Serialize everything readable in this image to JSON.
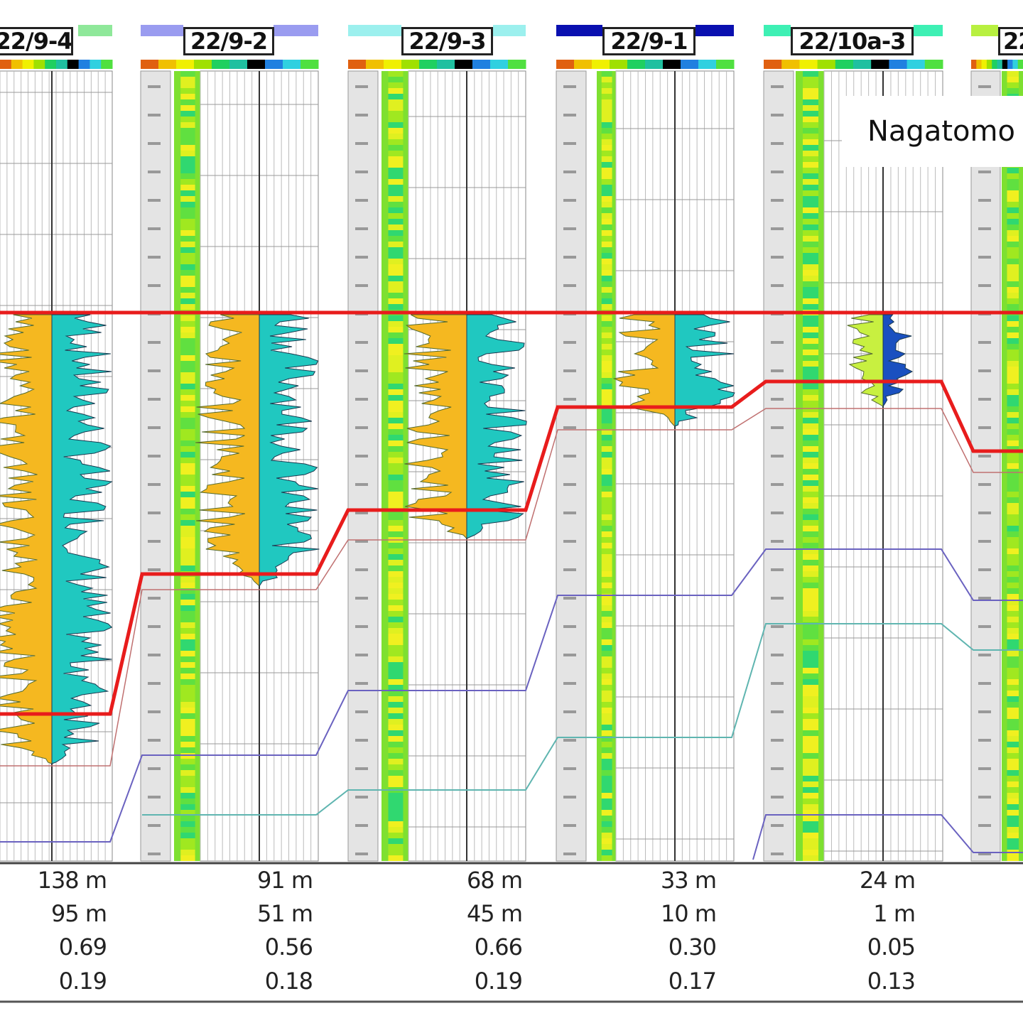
{
  "label": "Nagatomo",
  "colors": {
    "top_marker": "#e81c1c",
    "base_marker": "#e81c1c",
    "purple_marker": "#6a62c0",
    "teal_marker": "#5fb5b0",
    "thin_marker": "#c07070"
  },
  "wells": [
    {
      "name": "22/9-4",
      "header_color": "#8fe89a",
      "stats": [
        "138 m",
        "95 m",
        "0.69",
        "0.19"
      ]
    },
    {
      "name": "22/9-2",
      "header_color": "#9a9cf0",
      "stats": [
        "91 m",
        "51 m",
        "0.56",
        "0.18"
      ]
    },
    {
      "name": "22/9-3",
      "header_color": "#9cf0ee",
      "stats": [
        "68 m",
        "45 m",
        "0.66",
        "0.19"
      ]
    },
    {
      "name": "22/9-1",
      "header_color": "#0a10b0",
      "stats": [
        "33 m",
        "10 m",
        "0.30",
        "0.17"
      ]
    },
    {
      "name": "22/10a-3",
      "header_color": "#3ef0b4",
      "stats": [
        "24 m",
        "1 m",
        "0.05",
        "0.13"
      ]
    },
    {
      "name": "22",
      "header_color": "#b8f040",
      "stats": []
    }
  ]
}
